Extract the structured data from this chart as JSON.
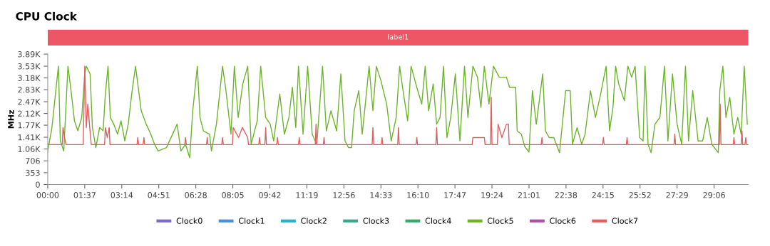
{
  "chart_data": {
    "type": "line",
    "title": "CPU Clock",
    "ylabel": "MHz",
    "xlim": [
      0,
      1836
    ],
    "ylim": [
      0,
      3890
    ],
    "xticks": [
      {
        "value": 0,
        "label": "00:00"
      },
      {
        "value": 97,
        "label": "01:37"
      },
      {
        "value": 194,
        "label": "03:14"
      },
      {
        "value": 291,
        "label": "04:51"
      },
      {
        "value": 388,
        "label": "06:28"
      },
      {
        "value": 485,
        "label": "08:05"
      },
      {
        "value": 582,
        "label": "09:42"
      },
      {
        "value": 679,
        "label": "11:19"
      },
      {
        "value": 776,
        "label": "12:56"
      },
      {
        "value": 873,
        "label": "14:33"
      },
      {
        "value": 970,
        "label": "16:10"
      },
      {
        "value": 1067,
        "label": "17:47"
      },
      {
        "value": 1164,
        "label": "19:24"
      },
      {
        "value": 1261,
        "label": "21:01"
      },
      {
        "value": 1358,
        "label": "22:38"
      },
      {
        "value": 1455,
        "label": "24:15"
      },
      {
        "value": 1552,
        "label": "25:52"
      },
      {
        "value": 1649,
        "label": "27:29"
      },
      {
        "value": 1746,
        "label": "29:06"
      }
    ],
    "yticks": [
      0,
      353,
      706,
      {
        "value": 1060,
        "label": "1.06K"
      },
      {
        "value": 1410,
        "label": "1.41K"
      },
      {
        "value": 1770,
        "label": "1.77K"
      },
      {
        "value": 2120,
        "label": "2.12K"
      },
      {
        "value": 2470,
        "label": "2.47K"
      },
      {
        "value": 2830,
        "label": "2.83K"
      },
      {
        "value": 3180,
        "label": "3.18K"
      },
      {
        "value": 3530,
        "label": "3.53K"
      },
      {
        "value": 3890,
        "label": "3.89K"
      }
    ],
    "annotations": [
      "label1"
    ],
    "grid": false,
    "legend": "bottom",
    "marker": "none",
    "line_style": "solid",
    "series": [
      {
        "name": "Clock0",
        "color": "#7e6bc4"
      },
      {
        "name": "Clock1",
        "color": "#4a8fd9"
      },
      {
        "name": "Clock2",
        "color": "#2bb0c6"
      },
      {
        "name": "Clock3",
        "color": "#3ba88e"
      },
      {
        "name": "Clock4",
        "color": "#3aa86b"
      },
      {
        "name": "Clock5",
        "color": "#6cb42c",
        "x": [
          0,
          11,
          23,
          28,
          33,
          42,
          53,
          61,
          70,
          79,
          89,
          97,
          101,
          111,
          117,
          126,
          136,
          145,
          151,
          158,
          164,
          173,
          183,
          192,
          202,
          211,
          220,
          230,
          236,
          245,
          258,
          270,
          280,
          289,
          311,
          339,
          349,
          361,
          372,
          380,
          392,
          399,
          408,
          424,
          429,
          442,
          458,
          467,
          480,
          489,
          499,
          511,
          524,
          533,
          549,
          558,
          571,
          583,
          592,
          608,
          620,
          632,
          641,
          650,
          657,
          669,
          681,
          693,
          705,
          720,
          730,
          742,
          757,
          768,
          779,
          788,
          796,
          803,
          815,
          824,
          833,
          842,
          852,
          861,
          873,
          888,
          900,
          913,
          922,
          931,
          943,
          952,
          967,
          980,
          989,
          998,
          1010,
          1019,
          1028,
          1037,
          1046,
          1056,
          1068,
          1080,
          1092,
          1101,
          1114,
          1126,
          1135,
          1144,
          1156,
          1168,
          1183,
          1202,
          1210,
          1226,
          1230,
          1241,
          1250,
          1261,
          1270,
          1280,
          1297,
          1304,
          1314,
          1326,
          1341,
          1357,
          1369,
          1375,
          1387,
          1399,
          1408,
          1422,
          1435,
          1447,
          1463,
          1472,
          1481,
          1488,
          1496,
          1511,
          1520,
          1530,
          1539,
          1551,
          1560,
          1565,
          1573,
          1581,
          1591,
          1604,
          1616,
          1625,
          1637,
          1649,
          1661,
          1671,
          1679,
          1690,
          1704,
          1716,
          1728,
          1740,
          1757,
          1761,
          1769,
          1777,
          1787,
          1798,
          1808,
          1817,
          1825,
          1833
        ],
        "values": [
          1000,
          1700,
          3000,
          3530,
          1300,
          1000,
          3530,
          2800,
          1900,
          1600,
          2000,
          3300,
          3530,
          3300,
          1700,
          1100,
          1700,
          1600,
          2700,
          3530,
          2000,
          1800,
          1500,
          1900,
          1300,
          1800,
          2700,
          3530,
          3000,
          2200,
          1800,
          1500,
          1200,
          1000,
          1100,
          1800,
          1000,
          1200,
          800,
          2200,
          3530,
          2000,
          1600,
          1500,
          1000,
          1800,
          3530,
          2800,
          1500,
          3530,
          2000,
          3000,
          3530,
          1200,
          1900,
          3530,
          2000,
          1800,
          1300,
          2700,
          1500,
          2000,
          2900,
          1700,
          3530,
          1500,
          3530,
          1500,
          1200,
          3530,
          1600,
          2200,
          1600,
          3300,
          1300,
          1100,
          1100,
          2200,
          2800,
          1500,
          2500,
          3530,
          2200,
          3530,
          3100,
          2400,
          1300,
          2000,
          3530,
          2800,
          1900,
          3530,
          2900,
          2400,
          3530,
          2200,
          3000,
          1800,
          2000,
          3530,
          1400,
          2000,
          3300,
          1300,
          3530,
          2000,
          3530,
          3200,
          2300,
          3530,
          2400,
          3530,
          3200,
          3200,
          2900,
          2900,
          1600,
          1500,
          1130,
          970,
          2800,
          1800,
          3300,
          1600,
          1400,
          1400,
          950,
          2800,
          2800,
          1200,
          1700,
          1200,
          1500,
          2800,
          2000,
          2600,
          3530,
          1600,
          2300,
          3530,
          3000,
          2500,
          3530,
          3200,
          3530,
          1400,
          1300,
          3530,
          1200,
          950,
          1800,
          2000,
          3530,
          1300,
          3300,
          1800,
          1200,
          3530,
          1300,
          2800,
          1300,
          1300,
          2000,
          1200,
          950,
          2800,
          3530,
          2000,
          2600,
          1500,
          2000,
          1500,
          3530,
          1800
        ]
      },
      {
        "name": "Clock6",
        "color": "#b04ea8"
      },
      {
        "name": "Clock7",
        "color": "#e06060",
        "x": [
          0,
          38,
          40,
          44,
          48,
          50,
          93,
          97,
          101,
          105,
          110,
          114,
          116,
          149,
          151,
          156,
          161,
          163,
          234,
          236,
          238,
          250,
          252,
          254,
          359,
          361,
          363,
          416,
          418,
          420,
          456,
          458,
          460,
          484,
          486,
          500,
          510,
          524,
          526,
          553,
          555,
          557,
          569,
          571,
          573,
          600,
          602,
          604,
          657,
          659,
          661,
          701,
          703,
          705,
          722,
          724,
          726,
          850,
          852,
          854,
          874,
          876,
          878,
          917,
          919,
          921,
          965,
          967,
          969,
          1017,
          1019,
          1021,
          1112,
          1114,
          1130,
          1144,
          1146,
          1160,
          1162,
          1164,
          1178,
          1180,
          1190,
          1202,
          1207,
          1209,
          1293,
          1295,
          1297,
          1454,
          1456,
          1458,
          1516,
          1518,
          1520,
          1641,
          1643,
          1645,
          1760,
          1762,
          1764,
          1796,
          1798,
          1800,
          1817,
          1819,
          1821,
          1827,
          1829,
          1831,
          1836
        ],
        "values": [
          1190,
          1190,
          1700,
          1400,
          1190,
          1190,
          1190,
          3530,
          1700,
          2400,
          1700,
          1190,
          1190,
          1190,
          1700,
          1400,
          1700,
          1190,
          1190,
          1400,
          1190,
          1190,
          1400,
          1190,
          1190,
          1400,
          1190,
          1190,
          1400,
          1190,
          1190,
          1400,
          1190,
          1190,
          1700,
          1400,
          1700,
          1400,
          1190,
          1190,
          1400,
          1190,
          1190,
          1700,
          1190,
          1190,
          1400,
          1190,
          1190,
          1400,
          1190,
          1190,
          1800,
          1190,
          1190,
          1400,
          1190,
          1190,
          1700,
          1190,
          1190,
          1400,
          1190,
          1190,
          1700,
          1190,
          1190,
          1400,
          1190,
          1190,
          1700,
          1190,
          1190,
          1400,
          1400,
          1400,
          1190,
          1190,
          2600,
          1190,
          1190,
          1800,
          1400,
          1800,
          1800,
          1190,
          1190,
          1400,
          1190,
          1190,
          1400,
          1190,
          1190,
          1400,
          1190,
          1190,
          1500,
          1190,
          1190,
          2400,
          1190,
          1190,
          1400,
          1190,
          1190,
          1600,
          1190,
          1190,
          1400,
          1190,
          1190
        ]
      }
    ]
  }
}
